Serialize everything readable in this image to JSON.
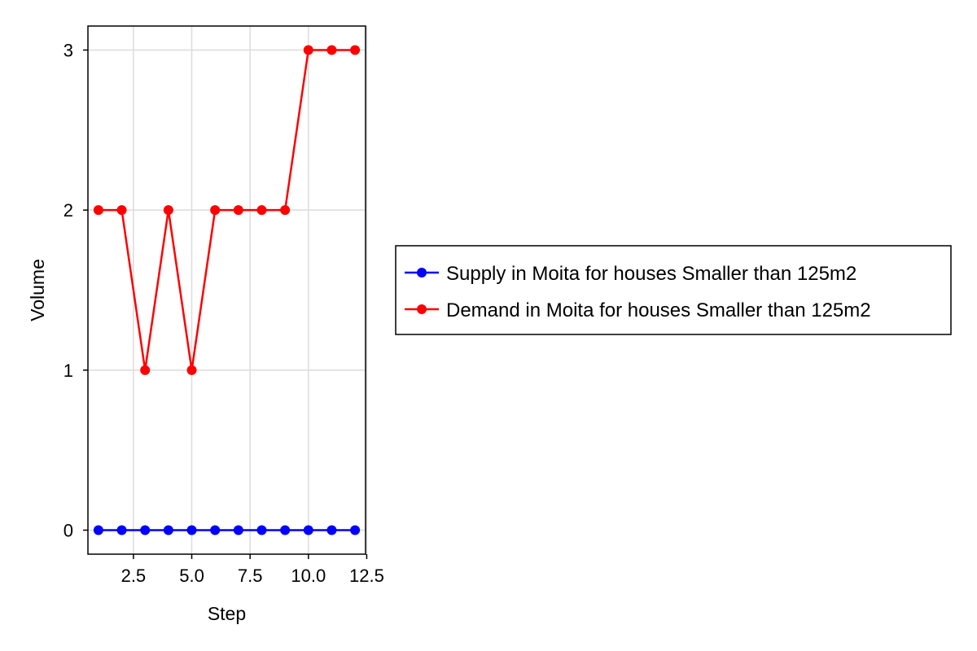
{
  "chart_data": {
    "type": "line",
    "title": "",
    "xlabel": "Step",
    "ylabel": "Volume",
    "xlim": [
      0.55,
      12.45
    ],
    "ylim": [
      -0.15,
      3.15
    ],
    "x_ticks": [
      2.5,
      5.0,
      7.5,
      10.0,
      12.5
    ],
    "x_tick_labels": [
      "2.5",
      "5.0",
      "7.5",
      "10.0",
      "12.5"
    ],
    "y_ticks": [
      0,
      1,
      2,
      3
    ],
    "y_tick_labels": [
      "0",
      "1",
      "2",
      "3"
    ],
    "grid": true,
    "legend_position": "right",
    "x": [
      1,
      2,
      3,
      4,
      5,
      6,
      7,
      8,
      9,
      10,
      11,
      12
    ],
    "series": [
      {
        "name": "Supply in Moita for houses Smaller than 125m2",
        "color": "#0000ff",
        "values": [
          0,
          0,
          0,
          0,
          0,
          0,
          0,
          0,
          0,
          0,
          0,
          0
        ]
      },
      {
        "name": "Demand in Moita for houses Smaller than 125m2",
        "color": "#ff0000",
        "values": [
          2,
          2,
          1,
          2,
          1,
          2,
          2,
          2,
          2,
          3,
          3,
          3
        ]
      }
    ]
  }
}
